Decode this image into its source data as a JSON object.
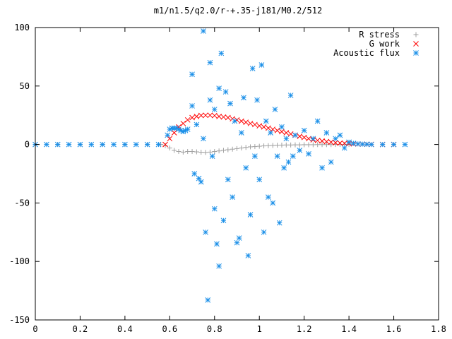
{
  "chart_data": {
    "type": "scatter",
    "title": "m1/n1.5/q2.0/r-+.35-j181/M0.2/512",
    "xlabel": "",
    "ylabel": "",
    "xlim": [
      0,
      1.8
    ],
    "ylim": [
      -150,
      100
    ],
    "x_ticks": [
      0,
      0.2,
      0.4,
      0.6,
      0.8,
      1,
      1.2,
      1.4,
      1.6,
      1.8
    ],
    "x_tick_labels": [
      "0",
      "0.2",
      "0.4",
      "0.6",
      "0.8",
      "1",
      "1.2",
      "1.4",
      "1.6",
      "1.8"
    ],
    "y_ticks": [
      -150,
      -100,
      -50,
      0,
      50,
      100
    ],
    "y_tick_labels": [
      "-150",
      "-100",
      "-50",
      "0",
      "50",
      "100"
    ],
    "grid": false,
    "legend_position": "top-right",
    "series": [
      {
        "name": "R stress",
        "marker": "+",
        "color": "#a0a0a0",
        "points": [
          [
            0.0,
            0
          ],
          [
            0.1,
            0
          ],
          [
            0.2,
            0
          ],
          [
            0.3,
            0
          ],
          [
            0.4,
            0
          ],
          [
            0.5,
            0
          ],
          [
            0.56,
            0
          ],
          [
            0.58,
            -1
          ],
          [
            0.6,
            -3
          ],
          [
            0.62,
            -5
          ],
          [
            0.64,
            -6
          ],
          [
            0.66,
            -6.5
          ],
          [
            0.68,
            -6
          ],
          [
            0.7,
            -6
          ],
          [
            0.72,
            -6.3
          ],
          [
            0.74,
            -6.6
          ],
          [
            0.76,
            -6.8
          ],
          [
            0.78,
            -6.5
          ],
          [
            0.8,
            -6
          ],
          [
            0.82,
            -5.5
          ],
          [
            0.84,
            -5
          ],
          [
            0.86,
            -4.5
          ],
          [
            0.88,
            -4
          ],
          [
            0.9,
            -3.5
          ],
          [
            0.92,
            -3
          ],
          [
            0.94,
            -2.5
          ],
          [
            0.96,
            -2
          ],
          [
            0.98,
            -1.8
          ],
          [
            1.0,
            -1.5
          ],
          [
            1.02,
            -1.2
          ],
          [
            1.04,
            -1
          ],
          [
            1.06,
            -0.8
          ],
          [
            1.08,
            -0.6
          ],
          [
            1.1,
            -0.5
          ],
          [
            1.12,
            -0.4
          ],
          [
            1.14,
            -0.4
          ],
          [
            1.16,
            -0.3
          ],
          [
            1.18,
            -0.3
          ],
          [
            1.2,
            -0.2
          ],
          [
            1.22,
            -0.2
          ],
          [
            1.24,
            -0.2
          ],
          [
            1.26,
            -0.1
          ],
          [
            1.28,
            -0.1
          ],
          [
            1.3,
            -0.1
          ],
          [
            1.32,
            -0.1
          ],
          [
            1.34,
            0
          ],
          [
            1.36,
            0
          ],
          [
            1.38,
            0
          ],
          [
            1.4,
            0
          ]
        ]
      },
      {
        "name": "G work",
        "marker": "x",
        "color": "#ff0000",
        "points": [
          [
            0.58,
            0
          ],
          [
            0.6,
            5
          ],
          [
            0.62,
            10
          ],
          [
            0.64,
            15
          ],
          [
            0.66,
            18
          ],
          [
            0.68,
            21
          ],
          [
            0.7,
            23
          ],
          [
            0.72,
            24
          ],
          [
            0.74,
            24.8
          ],
          [
            0.76,
            25
          ],
          [
            0.78,
            25
          ],
          [
            0.8,
            24.7
          ],
          [
            0.82,
            24
          ],
          [
            0.84,
            23.5
          ],
          [
            0.86,
            23
          ],
          [
            0.88,
            22
          ],
          [
            0.9,
            21
          ],
          [
            0.92,
            20
          ],
          [
            0.94,
            19
          ],
          [
            0.96,
            18
          ],
          [
            0.98,
            17
          ],
          [
            1.0,
            16
          ],
          [
            1.02,
            15
          ],
          [
            1.04,
            14
          ],
          [
            1.06,
            13
          ],
          [
            1.08,
            12
          ],
          [
            1.1,
            11
          ],
          [
            1.12,
            10
          ],
          [
            1.14,
            9
          ],
          [
            1.16,
            8
          ],
          [
            1.18,
            7
          ],
          [
            1.2,
            6
          ],
          [
            1.22,
            5
          ],
          [
            1.24,
            4
          ],
          [
            1.26,
            3.5
          ],
          [
            1.28,
            3
          ],
          [
            1.3,
            2.5
          ],
          [
            1.32,
            2
          ],
          [
            1.34,
            1.5
          ],
          [
            1.36,
            1.2
          ],
          [
            1.38,
            1
          ],
          [
            1.4,
            0.8
          ],
          [
            1.42,
            0.5
          ],
          [
            1.44,
            0.4
          ],
          [
            1.46,
            0.3
          ],
          [
            1.48,
            0.2
          ],
          [
            1.5,
            0.1
          ],
          [
            1.55,
            0
          ],
          [
            1.6,
            0
          ]
        ]
      },
      {
        "name": "Acoustic flux",
        "marker": "*",
        "color": "#1a8fe8",
        "points": [
          [
            0.0,
            0
          ],
          [
            0.05,
            0
          ],
          [
            0.1,
            0
          ],
          [
            0.15,
            0
          ],
          [
            0.2,
            0
          ],
          [
            0.25,
            0
          ],
          [
            0.3,
            0
          ],
          [
            0.35,
            0
          ],
          [
            0.4,
            0
          ],
          [
            0.45,
            0
          ],
          [
            0.5,
            0
          ],
          [
            0.55,
            0
          ],
          [
            0.59,
            8
          ],
          [
            0.6,
            13
          ],
          [
            0.61,
            14
          ],
          [
            0.62,
            14
          ],
          [
            0.63,
            14
          ],
          [
            0.64,
            13
          ],
          [
            0.65,
            12
          ],
          [
            0.66,
            11
          ],
          [
            0.67,
            12
          ],
          [
            0.68,
            13
          ],
          [
            0.7,
            33
          ],
          [
            0.7,
            60
          ],
          [
            0.71,
            -25
          ],
          [
            0.72,
            17
          ],
          [
            0.73,
            -29
          ],
          [
            0.74,
            -32
          ],
          [
            0.75,
            97
          ],
          [
            0.75,
            5
          ],
          [
            0.76,
            -75
          ],
          [
            0.77,
            -133
          ],
          [
            0.78,
            70
          ],
          [
            0.78,
            38
          ],
          [
            0.79,
            -10
          ],
          [
            0.8,
            -55
          ],
          [
            0.8,
            30
          ],
          [
            0.81,
            -85
          ],
          [
            0.82,
            -104
          ],
          [
            0.82,
            48
          ],
          [
            0.83,
            78
          ],
          [
            0.84,
            -65
          ],
          [
            0.85,
            45
          ],
          [
            0.86,
            -30
          ],
          [
            0.87,
            35
          ],
          [
            0.88,
            -45
          ],
          [
            0.89,
            20
          ],
          [
            0.9,
            -84
          ],
          [
            0.91,
            -80
          ],
          [
            0.92,
            10
          ],
          [
            0.93,
            40
          ],
          [
            0.94,
            -20
          ],
          [
            0.95,
            -95
          ],
          [
            0.96,
            -60
          ],
          [
            0.97,
            65
          ],
          [
            0.98,
            -10
          ],
          [
            0.99,
            38
          ],
          [
            1.0,
            -30
          ],
          [
            1.01,
            68
          ],
          [
            1.02,
            -75
          ],
          [
            1.03,
            20
          ],
          [
            1.04,
            -45
          ],
          [
            1.05,
            10
          ],
          [
            1.06,
            -50
          ],
          [
            1.07,
            30
          ],
          [
            1.08,
            -10
          ],
          [
            1.09,
            -67
          ],
          [
            1.1,
            15
          ],
          [
            1.11,
            -20
          ],
          [
            1.12,
            5
          ],
          [
            1.13,
            -15
          ],
          [
            1.14,
            42
          ],
          [
            1.15,
            -10
          ],
          [
            1.16,
            8
          ],
          [
            1.18,
            -5
          ],
          [
            1.2,
            12
          ],
          [
            1.22,
            -8
          ],
          [
            1.24,
            5
          ],
          [
            1.26,
            20
          ],
          [
            1.28,
            -20
          ],
          [
            1.3,
            10
          ],
          [
            1.32,
            -15
          ],
          [
            1.34,
            5
          ],
          [
            1.36,
            8
          ],
          [
            1.38,
            -3
          ],
          [
            1.4,
            2
          ],
          [
            1.42,
            1
          ],
          [
            1.44,
            0.5
          ],
          [
            1.46,
            0.3
          ],
          [
            1.48,
            0.2
          ],
          [
            1.5,
            0
          ],
          [
            1.55,
            0
          ],
          [
            1.6,
            0
          ],
          [
            1.65,
            0
          ]
        ]
      }
    ]
  },
  "colors": {
    "axis": "#000000",
    "background": "#ffffff"
  }
}
